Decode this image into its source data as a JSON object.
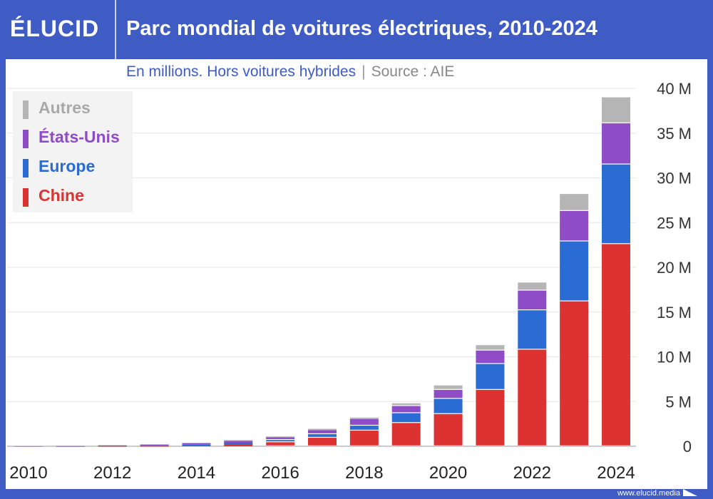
{
  "header": {
    "logo": "ÉLUCID",
    "title": "Parc mondial de voitures électriques, 2010-2024"
  },
  "subtitle": {
    "text": "En millions. Hors voitures hybrides",
    "separator": "|",
    "source": "Source : AIE"
  },
  "footer": {
    "url": "www.elucid.media"
  },
  "colors": {
    "frame": "#3f5bc4",
    "Chine": "#dd3232",
    "Europe": "#2a6bd4",
    "États-Unis": "#8e4cc6",
    "Autres": "#b5b5b5"
  },
  "chart_data": {
    "type": "bar",
    "stacked": true,
    "title": "Parc mondial de voitures électriques, 2010-2024",
    "subtitle": "En millions. Hors voitures hybrides | Source : AIE",
    "categories": [
      "2010",
      "2011",
      "2012",
      "2013",
      "2014",
      "2015",
      "2016",
      "2017",
      "2018",
      "2019",
      "2020",
      "2021",
      "2022",
      "2023",
      "2024"
    ],
    "x_tick_labels": [
      "2010",
      "2012",
      "2014",
      "2016",
      "2018",
      "2020",
      "2022",
      "2024"
    ],
    "y_tick_labels": [
      "0",
      "5 M",
      "10 M",
      "15 M",
      "20 M",
      "25 M",
      "30 M",
      "35 M",
      "40 M"
    ],
    "ylim": [
      0,
      40
    ],
    "grid": true,
    "legend_position": "top-left",
    "series": [
      {
        "name": "Chine",
        "values": [
          0.0,
          0.01,
          0.02,
          0.03,
          0.08,
          0.2,
          0.45,
          0.95,
          1.75,
          2.6,
          3.6,
          6.3,
          10.8,
          16.2,
          22.6
        ]
      },
      {
        "name": "Europe",
        "values": [
          0.0,
          0.01,
          0.03,
          0.06,
          0.1,
          0.2,
          0.25,
          0.4,
          0.55,
          1.1,
          1.7,
          2.9,
          4.4,
          6.7,
          8.9
        ]
      },
      {
        "name": "États-Unis",
        "values": [
          0.0,
          0.02,
          0.05,
          0.1,
          0.15,
          0.2,
          0.3,
          0.45,
          0.75,
          0.8,
          1.0,
          1.5,
          2.2,
          3.4,
          4.6
        ]
      },
      {
        "name": "Autres",
        "values": [
          0.01,
          0.02,
          0.03,
          0.04,
          0.07,
          0.08,
          0.1,
          0.15,
          0.15,
          0.3,
          0.5,
          0.6,
          0.9,
          1.9,
          2.9
        ]
      }
    ],
    "legend_order": [
      "Autres",
      "États-Unis",
      "Europe",
      "Chine"
    ]
  }
}
